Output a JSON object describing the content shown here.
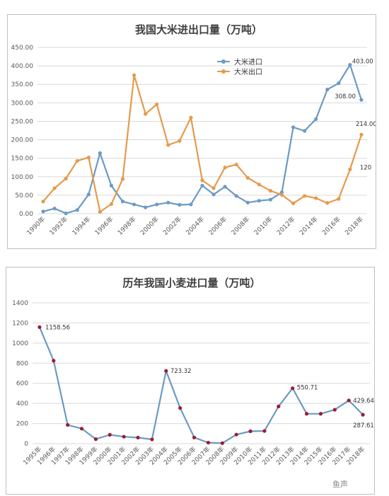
{
  "chart_data": [
    {
      "type": "line",
      "title": "我国大米进出口量（万吨）",
      "x": [
        "1990年",
        "1991年",
        "1992年",
        "1993年",
        "1994年",
        "1995年",
        "1996年",
        "1997年",
        "1998年",
        "1999年",
        "2000年",
        "2001年",
        "2002年",
        "2003年",
        "2004年",
        "2005年",
        "2006年",
        "2007年",
        "2008年",
        "2009年",
        "2010年",
        "2011年",
        "2012年",
        "2013年",
        "2014年",
        "2015年",
        "2016年",
        "2017年",
        "2018年"
      ],
      "x_tick_labels": [
        "1990年",
        "",
        "1992年",
        "",
        "1994年",
        "",
        "1996年",
        "",
        "1998年",
        "",
        "2000年",
        "",
        "2002年",
        "",
        "2004年",
        "",
        "2006年",
        "",
        "2008年",
        "",
        "2010年",
        "",
        "2012年",
        "",
        "2014年",
        "",
        "2016年",
        "",
        "2018年"
      ],
      "ylim": [
        0,
        450
      ],
      "yticks": [
        "0.00",
        "50.00",
        "100.00",
        "150.00",
        "200.00",
        "250.00",
        "300.00",
        "350.00",
        "400.00",
        "450.00"
      ],
      "grid": true,
      "legend_position": "top-center",
      "series": [
        {
          "name": "大米进口",
          "color": "#6b9ac4",
          "values": [
            6,
            14,
            1,
            10,
            52,
            164,
            76,
            33,
            25,
            17,
            25,
            30,
            24,
            25,
            76,
            52,
            73,
            48,
            30,
            35,
            38,
            58,
            234,
            224,
            256,
            336,
            353,
            403,
            308
          ],
          "labels": [
            {
              "index": 27,
              "text": "403.00"
            },
            {
              "index": 28,
              "text": "308.00"
            }
          ]
        },
        {
          "name": "大米出口",
          "color": "#e59a4c",
          "values": [
            33,
            69,
            95,
            143,
            152,
            5,
            26,
            94,
            375,
            270,
            296,
            186,
            197,
            260,
            90,
            69,
            125,
            133,
            97,
            79,
            62,
            51,
            28,
            48,
            42,
            29,
            40,
            120,
            214
          ],
          "labels": [
            {
              "index": 27,
              "text": "120"
            },
            {
              "index": 28,
              "text": "214.00"
            }
          ]
        }
      ]
    },
    {
      "type": "line",
      "title": "历年我国小麦进口量（万吨）",
      "x": [
        "1995年",
        "1996年",
        "1997年",
        "1998年",
        "1999年",
        "2000年",
        "2001年",
        "2002年",
        "2003年",
        "2004年",
        "2005年",
        "2006年",
        "2007年",
        "2008年",
        "2009年",
        "2010年",
        "2011年",
        "2012年",
        "2013年",
        "2014年",
        "2015年",
        "2016年",
        "2017年",
        "2018年"
      ],
      "ylim": [
        0,
        1400
      ],
      "yticks": [
        "0",
        "200",
        "400",
        "600",
        "800",
        "1000",
        "1200",
        "1400"
      ],
      "grid": true,
      "series": [
        {
          "name": "",
          "color": "#6b9ac4",
          "marker_color": "#9e1b32",
          "values": [
            1158.56,
            825,
            186,
            149,
            45,
            88,
            69,
            60,
            42,
            723.32,
            354,
            61,
            10,
            5,
            90,
            123,
            126,
            370,
            550.71,
            297,
            297,
            337,
            429.6486,
            287.61
          ],
          "labels": [
            {
              "index": 0,
              "text": "1158.56"
            },
            {
              "index": 9,
              "text": "723.32"
            },
            {
              "index": 18,
              "text": "550.71"
            },
            {
              "index": 22,
              "text": "429.6486"
            },
            {
              "index": 23,
              "text": "287.61"
            }
          ]
        }
      ]
    }
  ],
  "watermark": {
    "text": "鱼声"
  }
}
